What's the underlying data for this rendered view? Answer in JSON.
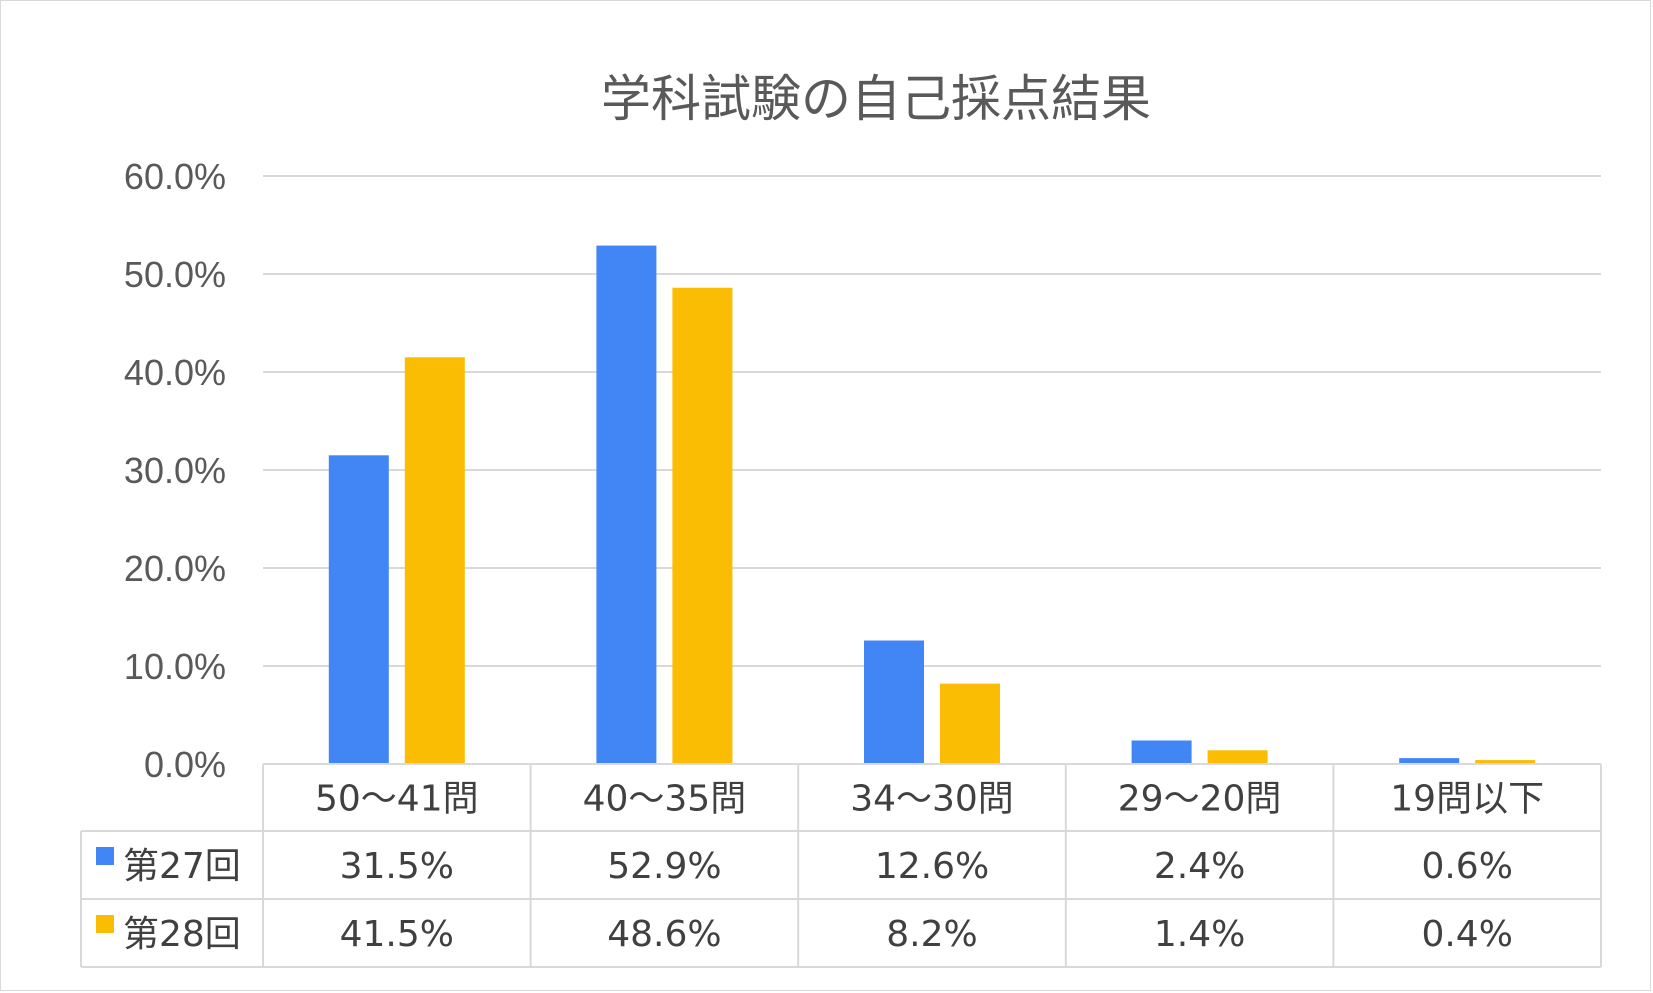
{
  "chart_data": {
    "type": "bar",
    "title": "学科試験の自己採点結果",
    "categories": [
      "50～41問",
      "40～35問",
      "34～30問",
      "29～20問",
      "19問以下"
    ],
    "series": [
      {
        "name": "第27回",
        "values": [
          31.5,
          52.9,
          12.6,
          2.4,
          0.6
        ],
        "labels": [
          "31.5%",
          "52.9%",
          "12.6%",
          "2.4%",
          "0.6%"
        ],
        "color": "#4285f4"
      },
      {
        "name": "第28回",
        "values": [
          41.5,
          48.6,
          8.2,
          1.4,
          0.4
        ],
        "labels": [
          "41.5%",
          "48.6%",
          "8.2%",
          "1.4%",
          "0.4%"
        ],
        "color": "#fbbc04"
      }
    ],
    "ylim": [
      0,
      60
    ],
    "yticks": [
      "0.0%",
      "10.0%",
      "20.0%",
      "30.0%",
      "40.0%",
      "50.0%",
      "60.0%"
    ],
    "grid": true,
    "legend": "data-table"
  }
}
